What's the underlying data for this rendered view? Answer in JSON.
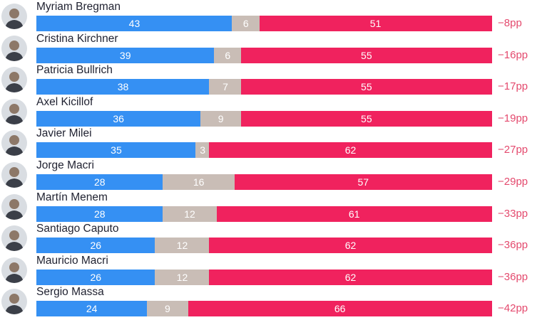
{
  "colors": {
    "positive": "#3590f3",
    "neutral": "#c9bdb6",
    "negative": "#f0225e",
    "difference_text": "#e44a6e"
  },
  "chart_data": {
    "type": "bar",
    "orientation": "horizontal",
    "stacked": true,
    "normalized": true,
    "title": "",
    "xlabel": "",
    "ylabel": "",
    "legend": "none",
    "grid": false,
    "categories": [
      "Myriam Bregman",
      "Cristina Kirchner",
      "Patricia Bullrich",
      "Axel Kicillof",
      "Javier Milei",
      "Jorge Macri",
      "Martín Menem",
      "Santiago Caputo",
      "Mauricio Macri",
      "Sergio Massa"
    ],
    "series": [
      {
        "values": [
          43,
          39,
          38,
          36,
          35,
          28,
          28,
          26,
          26,
          24
        ]
      },
      {
        "values": [
          6,
          6,
          7,
          9,
          3,
          16,
          12,
          12,
          12,
          9
        ]
      },
      {
        "values": [
          51,
          55,
          55,
          55,
          62,
          57,
          61,
          62,
          62,
          66
        ]
      }
    ],
    "differences": [
      "−8pp",
      "−16pp",
      "−17pp",
      "−19pp",
      "−27pp",
      "−29pp",
      "−33pp",
      "−36pp",
      "−36pp",
      "−42pp"
    ]
  }
}
